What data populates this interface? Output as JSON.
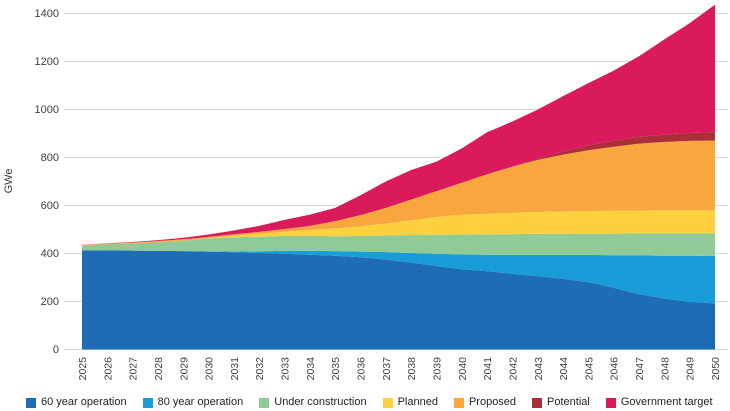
{
  "chart_data": {
    "type": "area",
    "stacked": true,
    "title": "",
    "ylabel": "GWe",
    "xlabel": "",
    "ylim": [
      0,
      1400
    ],
    "ytick_step": 200,
    "grid": "horizontal",
    "legend_position": "bottom",
    "x": [
      2025,
      2026,
      2027,
      2028,
      2029,
      2030,
      2031,
      2032,
      2033,
      2034,
      2035,
      2036,
      2037,
      2038,
      2039,
      2040,
      2041,
      2042,
      2043,
      2044,
      2045,
      2046,
      2047,
      2048,
      2049,
      2050
    ],
    "series": [
      {
        "name": "60 year operation",
        "color": "#1d6cb5",
        "values": [
          413,
          413,
          412,
          411,
          410,
          408,
          405,
          402,
          399,
          395,
          391,
          384,
          375,
          362,
          348,
          334,
          326,
          316,
          305,
          294,
          281,
          257,
          231,
          212,
          199,
          192
        ]
      },
      {
        "name": "80 year operation",
        "color": "#189dd9",
        "values": [
          0,
          0,
          0,
          0,
          0,
          1,
          3,
          7,
          12,
          16,
          19,
          24,
          31,
          40,
          51,
          62,
          69,
          78,
          89,
          100,
          113,
          136,
          161,
          179,
          192,
          198
        ]
      },
      {
        "name": "Under construction",
        "color": "#90cb97",
        "values": [
          22,
          25,
          30,
          36,
          43,
          54,
          60,
          61,
          62,
          63,
          62,
          65,
          69,
          75,
          79,
          83,
          85,
          87,
          88,
          88,
          89,
          90,
          92,
          93,
          93,
          94
        ]
      },
      {
        "name": "Planned",
        "color": "#fdd13d",
        "values": [
          0,
          0,
          0,
          0,
          0,
          1,
          7,
          13,
          18,
          24,
          33,
          40,
          50,
          61,
          74,
          83,
          86,
          89,
          91,
          93,
          94,
          95,
          95,
          96,
          97,
          97
        ]
      },
      {
        "name": "Proposed",
        "color": "#f7a73d",
        "values": [
          2,
          3,
          4,
          5,
          6,
          5,
          5,
          7,
          11,
          17,
          30,
          47,
          65,
          87,
          108,
          133,
          164,
          192,
          217,
          237,
          253,
          267,
          279,
          285,
          288,
          290
        ]
      },
      {
        "name": "Potential",
        "color": "#ab2e38",
        "values": [
          0,
          0,
          0,
          0,
          0,
          0,
          0,
          0,
          0,
          0,
          0,
          0,
          0,
          0,
          0,
          0,
          0,
          0,
          5,
          13,
          20,
          25,
          28,
          31,
          33,
          35
        ]
      },
      {
        "name": "Government target",
        "color": "#da1a5b",
        "values": [
          0,
          1,
          2,
          4,
          7,
          10,
          16,
          25,
          38,
          47,
          55,
          83,
          110,
          123,
          123,
          143,
          175,
          188,
          205,
          231,
          260,
          292,
          336,
          396,
          458,
          531
        ]
      }
    ],
    "yticks": [
      0,
      200,
      400,
      600,
      800,
      1000,
      1200,
      1400
    ]
  }
}
